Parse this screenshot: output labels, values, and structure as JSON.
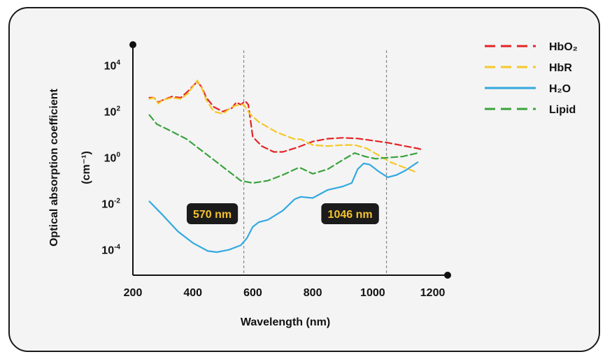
{
  "chart_data": {
    "type": "line",
    "title": "",
    "xlabel": "Wavelength (nm)",
    "ylabel": "Optical absorption coefficient",
    "ylabel_unit": "(cm⁻¹)",
    "xlim": [
      200,
      1250
    ],
    "ylim_log10": [
      -5.1,
      4.9
    ],
    "y_scale": "log",
    "x_ticks": [
      {
        "value": 200,
        "label": "200"
      },
      {
        "value": 400,
        "label": "400"
      },
      {
        "value": 600,
        "label": "600"
      },
      {
        "value": 800,
        "label": "800"
      },
      {
        "value": 1000,
        "label": "1000"
      },
      {
        "value": 1200,
        "label": "1200"
      }
    ],
    "y_ticks": [
      {
        "exp": 4,
        "base": "10",
        "sup": "4"
      },
      {
        "exp": 2,
        "base": "10",
        "sup": "2"
      },
      {
        "exp": 0,
        "base": "10",
        "sup": "0"
      },
      {
        "exp": -2,
        "base": "10",
        "sup": "-2"
      },
      {
        "exp": -4,
        "base": "10",
        "sup": "-4"
      }
    ],
    "legend_position": "top-right",
    "annotations": [
      {
        "x": 570,
        "label": "570 nm"
      },
      {
        "x": 1046,
        "label": "1046 nm"
      }
    ],
    "series": [
      {
        "name": "HbO₂",
        "color": "#e32426",
        "dash": "dashed",
        "points": [
          [
            255,
            2.6
          ],
          [
            270,
            2.6
          ],
          [
            285,
            2.4
          ],
          [
            300,
            2.5
          ],
          [
            330,
            2.65
          ],
          [
            360,
            2.6
          ],
          [
            385,
            2.9
          ],
          [
            415,
            3.3
          ],
          [
            430,
            3.05
          ],
          [
            445,
            2.6
          ],
          [
            470,
            2.2
          ],
          [
            500,
            2.0
          ],
          [
            530,
            2.15
          ],
          [
            545,
            2.4
          ],
          [
            560,
            2.3
          ],
          [
            575,
            2.45
          ],
          [
            585,
            2.3
          ],
          [
            600,
            0.9
          ],
          [
            630,
            0.5
          ],
          [
            670,
            0.25
          ],
          [
            700,
            0.25
          ],
          [
            750,
            0.45
          ],
          [
            800,
            0.7
          ],
          [
            850,
            0.82
          ],
          [
            900,
            0.86
          ],
          [
            950,
            0.83
          ],
          [
            1000,
            0.74
          ],
          [
            1050,
            0.65
          ],
          [
            1100,
            0.52
          ],
          [
            1150,
            0.4
          ],
          [
            1165,
            0.35
          ]
        ]
      },
      {
        "name": "HbR",
        "color": "#f5c827",
        "dash": "dashed",
        "points": [
          [
            255,
            2.55
          ],
          [
            270,
            2.6
          ],
          [
            285,
            2.35
          ],
          [
            300,
            2.5
          ],
          [
            330,
            2.6
          ],
          [
            360,
            2.55
          ],
          [
            385,
            2.8
          ],
          [
            415,
            3.35
          ],
          [
            430,
            3.0
          ],
          [
            445,
            2.5
          ],
          [
            470,
            2.0
          ],
          [
            500,
            1.9
          ],
          [
            530,
            2.2
          ],
          [
            555,
            2.3
          ],
          [
            570,
            2.3
          ],
          [
            590,
            1.9
          ],
          [
            620,
            1.55
          ],
          [
            680,
            1.1
          ],
          [
            740,
            0.8
          ],
          [
            760,
            0.8
          ],
          [
            800,
            0.55
          ],
          [
            850,
            0.5
          ],
          [
            900,
            0.55
          ],
          [
            940,
            0.55
          ],
          [
            980,
            0.4
          ],
          [
            1020,
            0.1
          ],
          [
            1060,
            -0.2
          ],
          [
            1100,
            -0.4
          ],
          [
            1150,
            -0.65
          ]
        ]
      },
      {
        "name": "H₂O",
        "color": "#33a9e0",
        "dash": "solid",
        "points": [
          [
            255,
            -1.9
          ],
          [
            300,
            -2.5
          ],
          [
            350,
            -3.2
          ],
          [
            400,
            -3.7
          ],
          [
            450,
            -4.05
          ],
          [
            480,
            -4.1
          ],
          [
            520,
            -4.0
          ],
          [
            560,
            -3.8
          ],
          [
            580,
            -3.5
          ],
          [
            600,
            -3.0
          ],
          [
            620,
            -2.8
          ],
          [
            650,
            -2.7
          ],
          [
            700,
            -2.3
          ],
          [
            740,
            -1.8
          ],
          [
            760,
            -1.7
          ],
          [
            800,
            -1.75
          ],
          [
            850,
            -1.4
          ],
          [
            900,
            -1.25
          ],
          [
            930,
            -1.1
          ],
          [
            950,
            -0.5
          ],
          [
            970,
            -0.25
          ],
          [
            990,
            -0.3
          ],
          [
            1020,
            -0.6
          ],
          [
            1050,
            -0.85
          ],
          [
            1080,
            -0.75
          ],
          [
            1110,
            -0.55
          ],
          [
            1150,
            -0.2
          ]
        ]
      },
      {
        "name": "Lipid",
        "color": "#3aa33d",
        "dash": "dashed",
        "points": [
          [
            255,
            1.85
          ],
          [
            280,
            1.45
          ],
          [
            320,
            1.2
          ],
          [
            380,
            0.8
          ],
          [
            440,
            0.2
          ],
          [
            500,
            -0.4
          ],
          [
            560,
            -1.0
          ],
          [
            600,
            -1.1
          ],
          [
            650,
            -1.0
          ],
          [
            700,
            -0.75
          ],
          [
            750,
            -0.45
          ],
          [
            760,
            -0.45
          ],
          [
            800,
            -0.7
          ],
          [
            850,
            -0.5
          ],
          [
            900,
            -0.1
          ],
          [
            940,
            0.2
          ],
          [
            975,
            0.05
          ],
          [
            1010,
            -0.05
          ],
          [
            1050,
            0.0
          ],
          [
            1100,
            0.05
          ],
          [
            1150,
            0.2
          ]
        ]
      }
    ]
  }
}
